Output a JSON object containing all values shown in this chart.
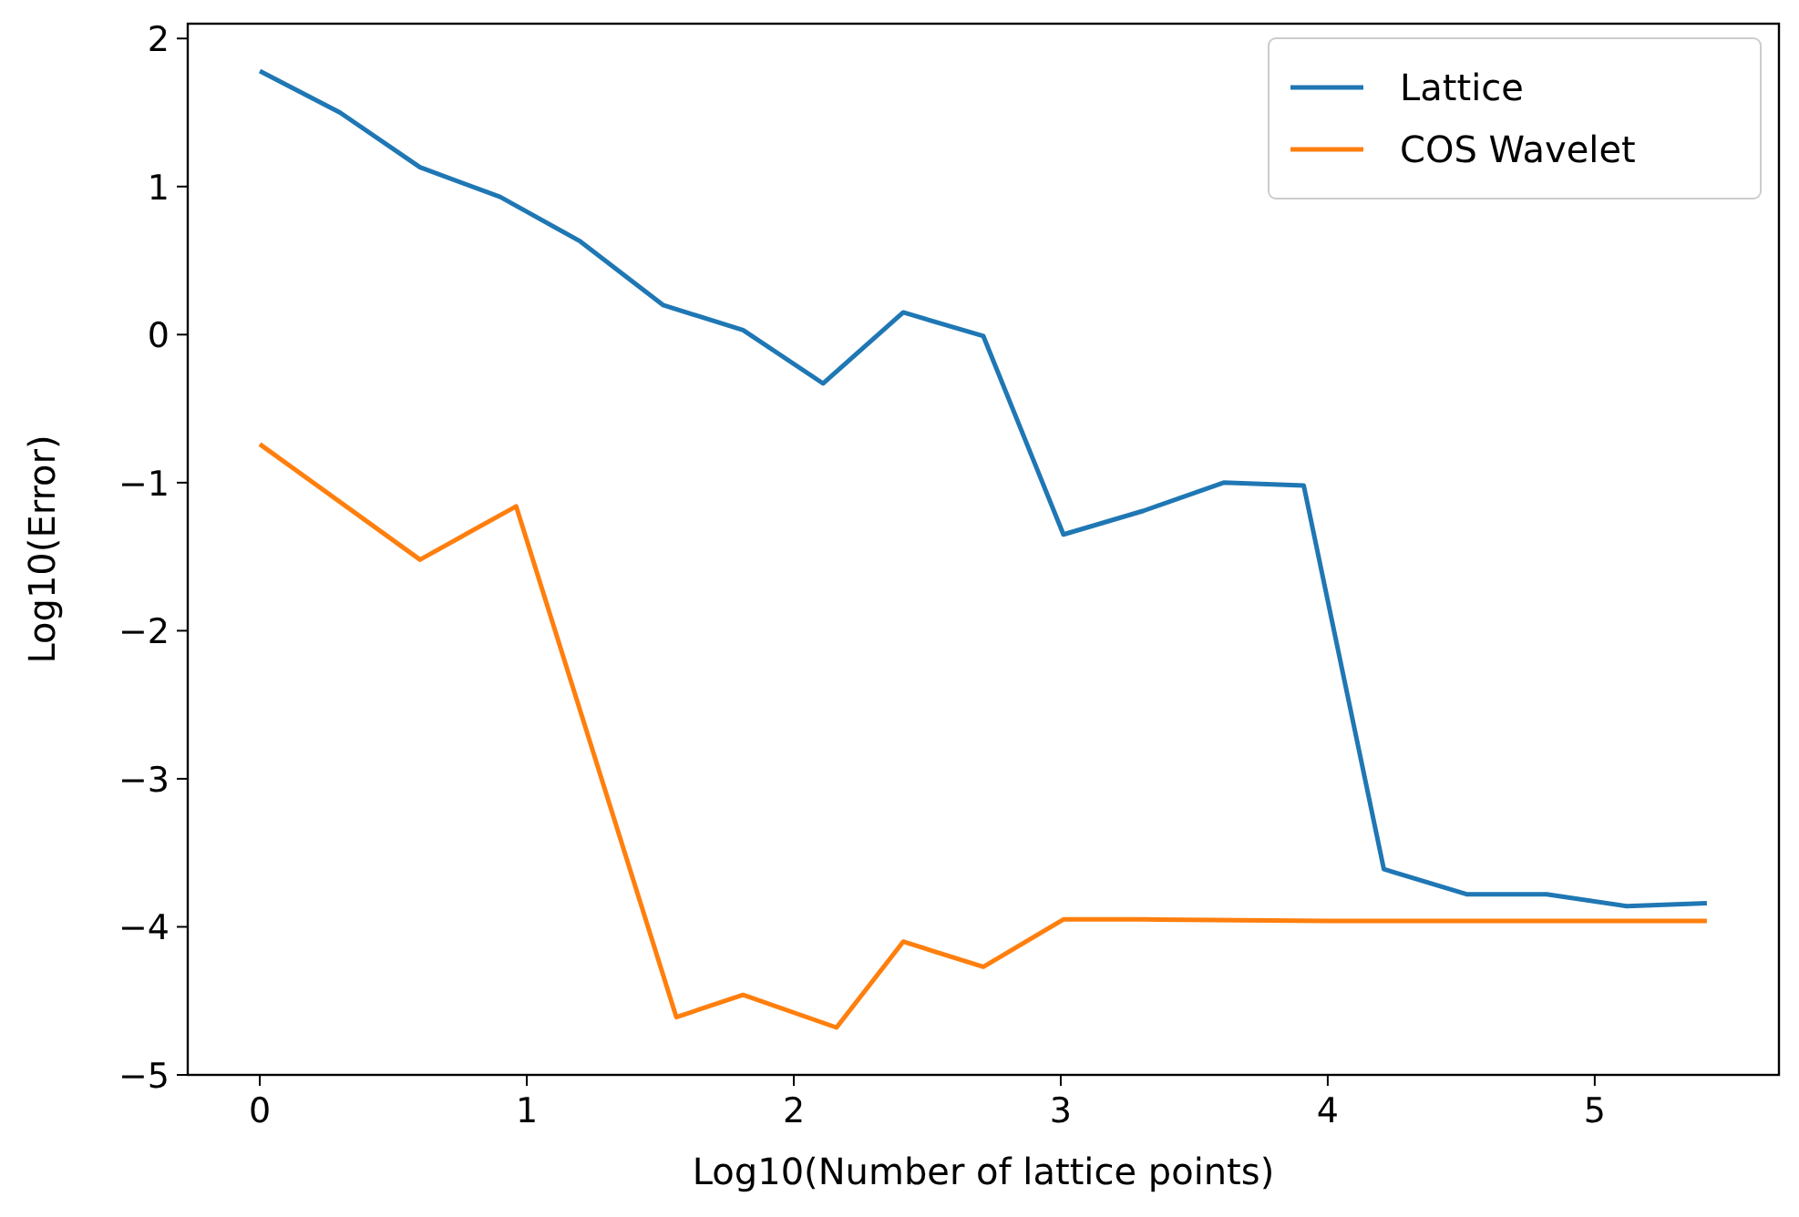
{
  "chart_data": {
    "type": "line",
    "xlabel": "Log10(Number of lattice points)",
    "ylabel": "Log10(Error)",
    "xlim": [
      -0.27,
      5.69
    ],
    "ylim": [
      -5,
      2.1
    ],
    "xticks": [
      0,
      1,
      2,
      3,
      4,
      5
    ],
    "yticks": [
      -5,
      -4,
      -3,
      -2,
      -1,
      0,
      1,
      2
    ],
    "legend": "top right",
    "grid": false,
    "series": [
      {
        "name": "Lattice",
        "color": "#1f77b4",
        "x": [
          0,
          0.3,
          0.6,
          0.9,
          1.2,
          1.51,
          1.81,
          2.11,
          2.41,
          2.71,
          3.01,
          3.31,
          3.61,
          3.91,
          4.21,
          4.52,
          4.82,
          5.12,
          5.42
        ],
        "values": [
          1.78,
          1.5,
          1.13,
          0.93,
          0.63,
          0.2,
          0.03,
          -0.33,
          0.15,
          -0.01,
          -1.35,
          -1.19,
          -1.0,
          -1.02,
          -3.61,
          -3.78,
          -3.78,
          -3.86,
          -3.84
        ]
      },
      {
        "name": "COS Wavelet",
        "color": "#ff7f0e",
        "x": [
          0,
          0.6,
          0.96,
          1.56,
          1.81,
          2.16,
          2.41,
          2.71,
          3.01,
          3.31,
          4.0,
          5.42
        ],
        "values": [
          -0.74,
          -1.52,
          -1.16,
          -4.61,
          -4.46,
          -4.68,
          -4.1,
          -4.27,
          -3.95,
          -3.95,
          -3.96,
          -3.96
        ]
      }
    ]
  }
}
